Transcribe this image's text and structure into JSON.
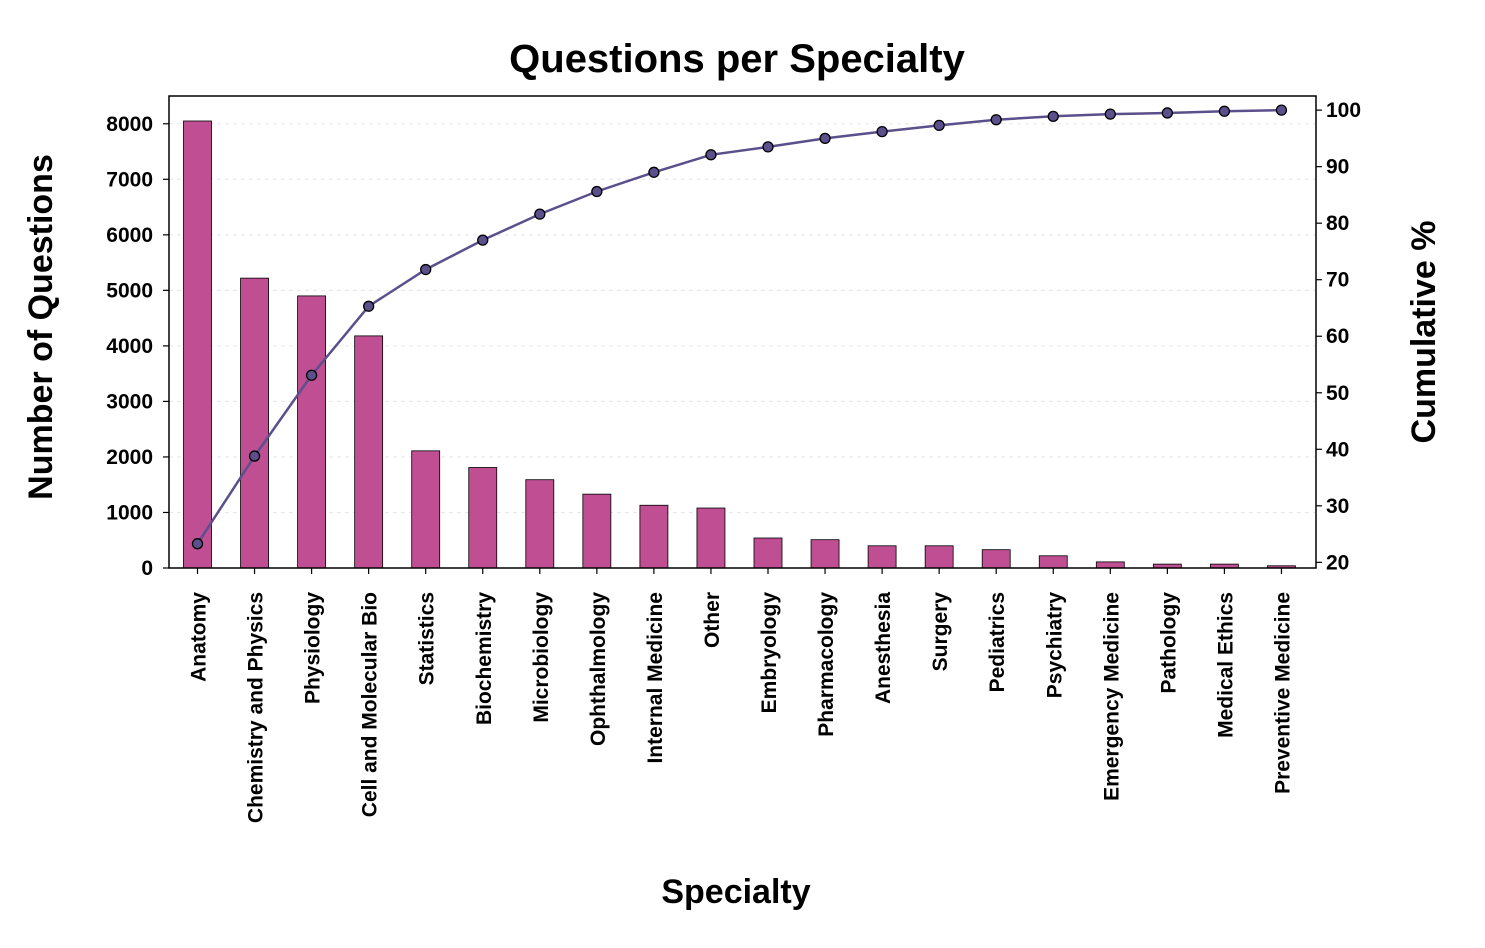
{
  "chart_data": {
    "type": "bar",
    "title": "Questions per Specialty",
    "xlabel": "Specialty",
    "ylabel": "Number of Questions",
    "y2label": "Cumulative %",
    "categories": [
      "Anatomy",
      "Chemistry and Physics",
      "Physiology",
      "Cell and Molecular Bio",
      "Statistics",
      "Biochemistry",
      "Microbiology",
      "Ophthalmology",
      "Internal Medicine",
      "Other",
      "Embryology",
      "Pharmacology",
      "Anesthesia",
      "Surgery",
      "Pediatrics",
      "Psychiatry",
      "Emergency Medicine",
      "Pathology",
      "Medical Ethics",
      "Preventive Medicine"
    ],
    "series": [
      {
        "type": "bar",
        "axis": "left",
        "color": "#bf4e92",
        "values": [
          8050,
          5220,
          4900,
          4180,
          2110,
          1810,
          1590,
          1330,
          1130,
          1080,
          540,
          510,
          400,
          400,
          330,
          220,
          110,
          70,
          70,
          40
        ]
      },
      {
        "type": "line",
        "axis": "right",
        "color": "#5b4f8c",
        "values": [
          23.3,
          38.8,
          53.1,
          65.3,
          71.8,
          77.0,
          81.6,
          85.6,
          89.0,
          92.1,
          93.5,
          95.0,
          96.2,
          97.3,
          98.3,
          98.9,
          99.3,
          99.5,
          99.8,
          100.0
        ]
      }
    ],
    "ylim": [
      0,
      8500
    ],
    "y2lim": [
      19,
      102.5
    ],
    "yticks": [
      0,
      1000,
      2000,
      3000,
      4000,
      5000,
      6000,
      7000,
      8000
    ],
    "y2ticks": [
      20,
      30,
      40,
      50,
      60,
      70,
      80,
      90,
      100
    ],
    "grid": true,
    "legend": "none"
  }
}
